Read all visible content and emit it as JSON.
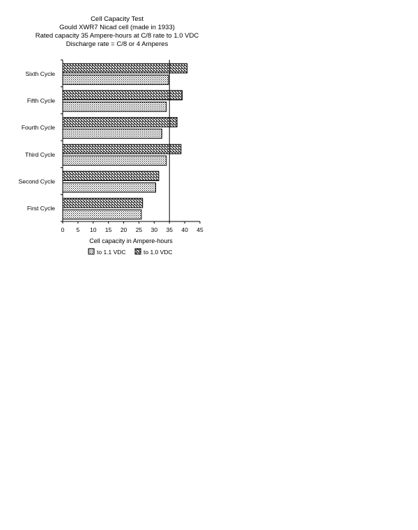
{
  "chart_data": {
    "type": "bar",
    "orientation": "horizontal",
    "title": [
      "Cell Capacity Test",
      "Gould XWR7 Nicad cell (made in 1933)",
      "Rated capacity 35 Ampere-hours at C/8 rate to 1.0 VDC",
      "Discharge rate = C/8 or  4 Amperes"
    ],
    "categories": [
      "Sixth Cycle",
      "Fifth Cycle",
      "Fourth Cycle",
      "Third Cycle",
      "Second Cycle",
      "First Cycle"
    ],
    "series": [
      {
        "name": "to 1.1 VDC",
        "pattern": "dots",
        "values": [
          34.7,
          34.0,
          32.5,
          34.0,
          30.5,
          25.8
        ]
      },
      {
        "name": "to 1.0 VDC",
        "pattern": "hatch",
        "values": [
          40.8,
          39.2,
          37.5,
          38.8,
          31.5,
          26.2
        ]
      }
    ],
    "xlabel": "Cell capacity in Ampere-hours",
    "ylabel": "",
    "xlim": [
      0,
      45
    ],
    "xticks": [
      0,
      5,
      10,
      15,
      20,
      25,
      30,
      35,
      40,
      45
    ],
    "reference_line": 35,
    "grid": false,
    "legend_position": "bottom"
  }
}
